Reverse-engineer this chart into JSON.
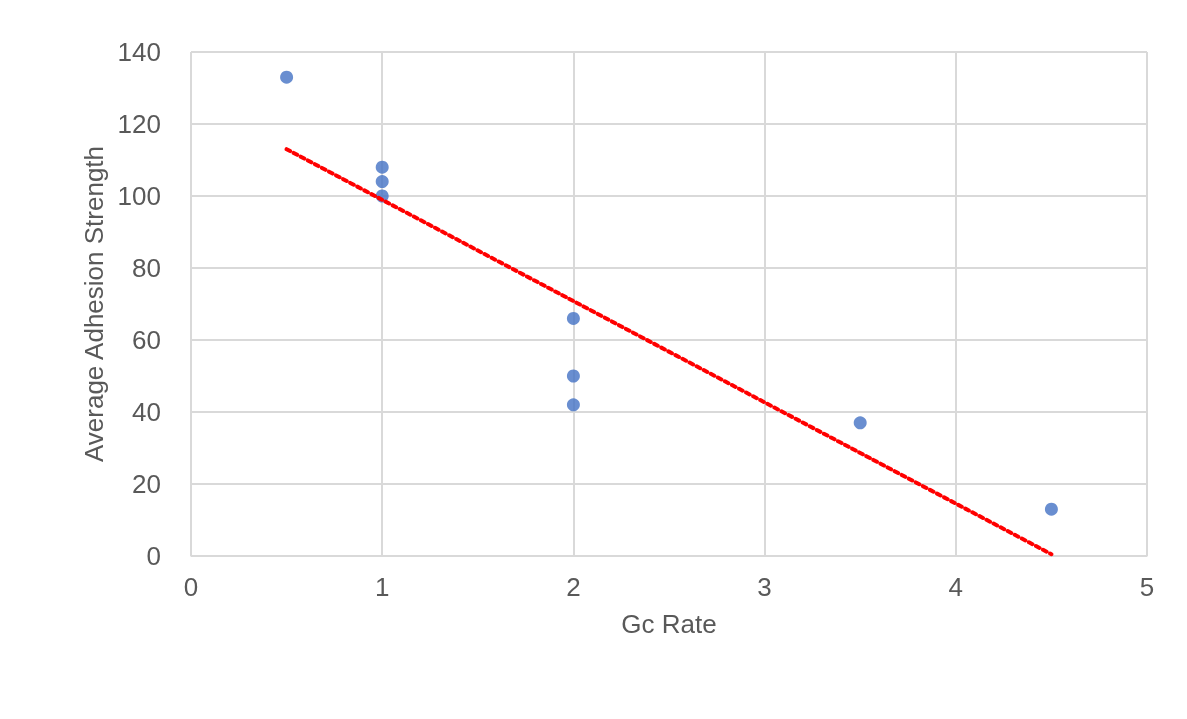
{
  "chart_data": {
    "type": "scatter",
    "xlabel": "Gc Rate",
    "ylabel": "Average Adhesion Strength",
    "xlim": [
      0,
      5
    ],
    "xticks": [
      0,
      1,
      2,
      3,
      4,
      5
    ],
    "ylim": [
      0,
      140
    ],
    "yticks": [
      0,
      20,
      40,
      60,
      80,
      100,
      120,
      140
    ],
    "grid": true,
    "series": [
      {
        "type": "scatter",
        "color": "#4472c4",
        "marker": "circle",
        "x": [
          0.5,
          1,
          1,
          1,
          2,
          2,
          2,
          3.5,
          4.5
        ],
        "values": [
          133,
          108,
          104,
          100,
          66,
          50,
          42,
          37,
          13
        ]
      },
      {
        "type": "line",
        "color": "#ff0000",
        "marker": "none",
        "line_style": "dotted",
        "x": [
          0.5,
          4.5
        ],
        "values": [
          113,
          0.5
        ]
      }
    ]
  }
}
